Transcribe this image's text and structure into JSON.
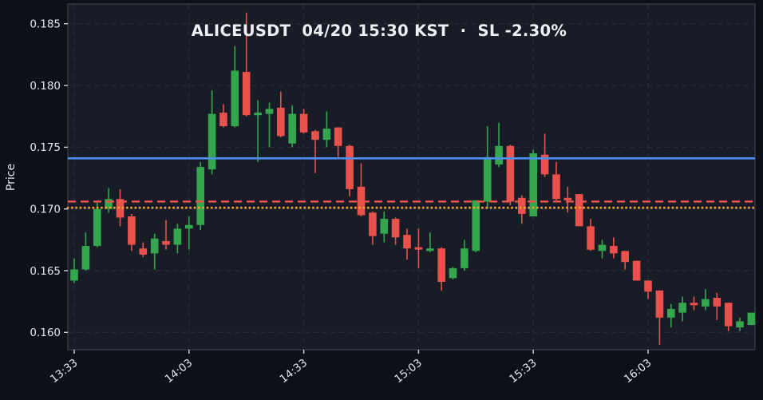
{
  "title": "ALICEUSDT  04/20 15:30 KST  ·  SL -2.30%",
  "chart_data": {
    "type": "candlestick",
    "symbol": "ALICEUSDT",
    "title": "ALICEUSDT  04/20 15:30 KST  ·  SL -2.30%",
    "subtitle_stop_loss": "SL -2.30%",
    "date": "04/20",
    "time_marker": "15:30 KST",
    "xlabel": "",
    "ylabel": "Price",
    "grid": true,
    "ylim": [
      0.1586,
      0.1866
    ],
    "y_ticks": [
      "0.185",
      "0.180",
      "0.175",
      "0.170",
      "0.165",
      "0.160"
    ],
    "x_ticks": [
      "13:33",
      "14:03",
      "14:33",
      "15:03",
      "15:33",
      "16:03"
    ],
    "colors": {
      "up": "#34a74e",
      "down": "#e9524c",
      "plot_background": "#181c27",
      "figure_background": "#0d1017",
      "grid": "#2a2f3c",
      "frame": "#3a4150",
      "tick_text": "#e3e6ec",
      "title_text": "#eef0f3"
    },
    "hlines": [
      {
        "name": "hline-blue-solid",
        "price": 0.1741,
        "style": "solid",
        "color": "#4b8ef0",
        "width": 2.6
      },
      {
        "name": "hline-red-dashed",
        "price": 0.1706,
        "style": "dashed",
        "color": "#f2524e",
        "width": 2.4
      },
      {
        "name": "hline-orange-dotted",
        "price": 0.1701,
        "style": "dotted",
        "color": "#f0a32b",
        "width": 2.8
      }
    ],
    "candles": [
      {
        "t": "13:33",
        "o": 0.1642,
        "h": 0.166,
        "l": 0.164,
        "c": 0.1651
      },
      {
        "t": "13:36",
        "o": 0.1651,
        "h": 0.1681,
        "l": 0.165,
        "c": 0.167
      },
      {
        "t": "13:39",
        "o": 0.167,
        "h": 0.1706,
        "l": 0.1669,
        "c": 0.17
      },
      {
        "t": "13:42",
        "o": 0.17,
        "h": 0.1717,
        "l": 0.1697,
        "c": 0.1708
      },
      {
        "t": "13:45",
        "o": 0.1708,
        "h": 0.1716,
        "l": 0.1686,
        "c": 0.1693
      },
      {
        "t": "13:48",
        "o": 0.1694,
        "h": 0.1696,
        "l": 0.1666,
        "c": 0.1671
      },
      {
        "t": "13:51",
        "o": 0.1668,
        "h": 0.1673,
        "l": 0.1661,
        "c": 0.1663
      },
      {
        "t": "13:54",
        "o": 0.1664,
        "h": 0.168,
        "l": 0.1651,
        "c": 0.1676
      },
      {
        "t": "13:57",
        "o": 0.1674,
        "h": 0.1691,
        "l": 0.1667,
        "c": 0.1671
      },
      {
        "t": "14:00",
        "o": 0.1671,
        "h": 0.1688,
        "l": 0.1664,
        "c": 0.1684
      },
      {
        "t": "14:03",
        "o": 0.1684,
        "h": 0.1694,
        "l": 0.1667,
        "c": 0.1687
      },
      {
        "t": "14:06",
        "o": 0.1687,
        "h": 0.1738,
        "l": 0.1683,
        "c": 0.1734
      },
      {
        "t": "14:09",
        "o": 0.1732,
        "h": 0.1796,
        "l": 0.1728,
        "c": 0.1777
      },
      {
        "t": "14:12",
        "o": 0.1778,
        "h": 0.1785,
        "l": 0.1766,
        "c": 0.1767
      },
      {
        "t": "14:15",
        "o": 0.1767,
        "h": 0.1832,
        "l": 0.1766,
        "c": 0.1812
      },
      {
        "t": "14:18",
        "o": 0.1811,
        "h": 0.1859,
        "l": 0.1775,
        "c": 0.1776
      },
      {
        "t": "14:21",
        "o": 0.1776,
        "h": 0.1788,
        "l": 0.1738,
        "c": 0.1778
      },
      {
        "t": "14:24",
        "o": 0.1777,
        "h": 0.1786,
        "l": 0.175,
        "c": 0.1781
      },
      {
        "t": "14:27",
        "o": 0.1782,
        "h": 0.1795,
        "l": 0.1758,
        "c": 0.1759
      },
      {
        "t": "14:30",
        "o": 0.1753,
        "h": 0.1784,
        "l": 0.175,
        "c": 0.1777
      },
      {
        "t": "14:33",
        "o": 0.1777,
        "h": 0.1781,
        "l": 0.1761,
        "c": 0.1762
      },
      {
        "t": "14:36",
        "o": 0.1763,
        "h": 0.1764,
        "l": 0.1729,
        "c": 0.1756
      },
      {
        "t": "14:39",
        "o": 0.1756,
        "h": 0.1779,
        "l": 0.175,
        "c": 0.1765
      },
      {
        "t": "14:42",
        "o": 0.1766,
        "h": 0.1766,
        "l": 0.1742,
        "c": 0.1751
      },
      {
        "t": "14:45",
        "o": 0.1751,
        "h": 0.1752,
        "l": 0.171,
        "c": 0.1716
      },
      {
        "t": "14:48",
        "o": 0.1718,
        "h": 0.1737,
        "l": 0.1694,
        "c": 0.1695
      },
      {
        "t": "14:51",
        "o": 0.1697,
        "h": 0.1698,
        "l": 0.1671,
        "c": 0.1678
      },
      {
        "t": "14:54",
        "o": 0.168,
        "h": 0.1698,
        "l": 0.1673,
        "c": 0.1692
      },
      {
        "t": "14:57",
        "o": 0.1692,
        "h": 0.1693,
        "l": 0.1671,
        "c": 0.1677
      },
      {
        "t": "15:00",
        "o": 0.1679,
        "h": 0.1684,
        "l": 0.1659,
        "c": 0.1668
      },
      {
        "t": "15:03",
        "o": 0.1669,
        "h": 0.1684,
        "l": 0.1652,
        "c": 0.1667
      },
      {
        "t": "15:06",
        "o": 0.1666,
        "h": 0.1681,
        "l": 0.1665,
        "c": 0.1668
      },
      {
        "t": "15:09",
        "o": 0.1668,
        "h": 0.1669,
        "l": 0.1634,
        "c": 0.1641
      },
      {
        "t": "15:12",
        "o": 0.1644,
        "h": 0.1653,
        "l": 0.1643,
        "c": 0.1652
      },
      {
        "t": "15:15",
        "o": 0.1652,
        "h": 0.1675,
        "l": 0.165,
        "c": 0.1668
      },
      {
        "t": "15:18",
        "o": 0.1666,
        "h": 0.1707,
        "l": 0.1665,
        "c": 0.1707
      },
      {
        "t": "15:21",
        "o": 0.1706,
        "h": 0.1767,
        "l": 0.17,
        "c": 0.1742
      },
      {
        "t": "15:24",
        "o": 0.1736,
        "h": 0.177,
        "l": 0.1734,
        "c": 0.1751
      },
      {
        "t": "15:27",
        "o": 0.1751,
        "h": 0.1752,
        "l": 0.1703,
        "c": 0.1706
      },
      {
        "t": "15:30",
        "o": 0.1709,
        "h": 0.1711,
        "l": 0.1688,
        "c": 0.1696
      },
      {
        "t": "15:33",
        "o": 0.1694,
        "h": 0.1748,
        "l": 0.1694,
        "c": 0.1745
      },
      {
        "t": "15:36",
        "o": 0.1744,
        "h": 0.1761,
        "l": 0.1726,
        "c": 0.1728
      },
      {
        "t": "15:39",
        "o": 0.1728,
        "h": 0.1738,
        "l": 0.1707,
        "c": 0.1708
      },
      {
        "t": "15:42",
        "o": 0.1709,
        "h": 0.1718,
        "l": 0.1697,
        "c": 0.1707
      },
      {
        "t": "15:45",
        "o": 0.1712,
        "h": 0.1712,
        "l": 0.1686,
        "c": 0.1686
      },
      {
        "t": "15:48",
        "o": 0.1686,
        "h": 0.1692,
        "l": 0.1666,
        "c": 0.1667
      },
      {
        "t": "15:51",
        "o": 0.1666,
        "h": 0.1675,
        "l": 0.166,
        "c": 0.1671
      },
      {
        "t": "15:54",
        "o": 0.167,
        "h": 0.1677,
        "l": 0.166,
        "c": 0.1664
      },
      {
        "t": "15:57",
        "o": 0.1666,
        "h": 0.1666,
        "l": 0.1651,
        "c": 0.1657
      },
      {
        "t": "16:00",
        "o": 0.1658,
        "h": 0.1658,
        "l": 0.1642,
        "c": 0.1642
      },
      {
        "t": "16:03",
        "o": 0.1642,
        "h": 0.1642,
        "l": 0.1627,
        "c": 0.1633
      },
      {
        "t": "16:06",
        "o": 0.1634,
        "h": 0.1634,
        "l": 0.159,
        "c": 0.1612
      },
      {
        "t": "16:09",
        "o": 0.1612,
        "h": 0.1623,
        "l": 0.1604,
        "c": 0.1619
      },
      {
        "t": "16:12",
        "o": 0.1616,
        "h": 0.1629,
        "l": 0.1609,
        "c": 0.1624
      },
      {
        "t": "16:15",
        "o": 0.1624,
        "h": 0.1629,
        "l": 0.1618,
        "c": 0.1622
      },
      {
        "t": "16:18",
        "o": 0.1621,
        "h": 0.1635,
        "l": 0.1618,
        "c": 0.1627
      },
      {
        "t": "16:21",
        "o": 0.1628,
        "h": 0.1632,
        "l": 0.161,
        "c": 0.1621
      },
      {
        "t": "16:24",
        "o": 0.1624,
        "h": 0.1624,
        "l": 0.1601,
        "c": 0.1605
      },
      {
        "t": "16:27",
        "o": 0.1604,
        "h": 0.1612,
        "l": 0.1601,
        "c": 0.1609
      },
      {
        "t": "16:30",
        "o": 0.1606,
        "h": 0.1616,
        "l": 0.1606,
        "c": 0.1616
      }
    ]
  }
}
